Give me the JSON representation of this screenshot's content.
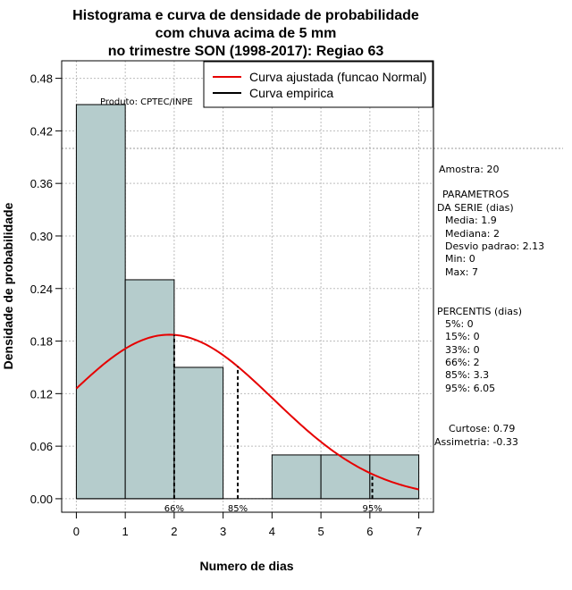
{
  "chart_data": {
    "type": "bar",
    "title_lines": [
      "Histograma e curva de densidade de probabilidade",
      "com chuva acima de 5 mm",
      "no trimestre SON (1998-2017): Regiao 63"
    ],
    "xlabel": "Numero de dias",
    "ylabel": "Densidade de probabilidade",
    "xlim": [
      -0.3,
      7.3
    ],
    "ylim": [
      -0.0154,
      0.5
    ],
    "x_ticks": [
      "0",
      "1",
      "2",
      "3",
      "4",
      "5",
      "6",
      "7"
    ],
    "y_ticks": [
      "0.00",
      "0.06",
      "0.12",
      "0.18",
      "0.24",
      "0.30",
      "0.36",
      "0.42",
      "0.48"
    ],
    "grid": true,
    "legend_position": "top-right",
    "bins": [
      {
        "start": 0,
        "end": 1,
        "density": 0.45
      },
      {
        "start": 1,
        "end": 2,
        "density": 0.25
      },
      {
        "start": 2,
        "end": 3,
        "density": 0.15
      },
      {
        "start": 3,
        "end": 4,
        "density": 0.0
      },
      {
        "start": 4,
        "end": 5,
        "density": 0.05
      },
      {
        "start": 5,
        "end": 6,
        "density": 0.05
      },
      {
        "start": 6,
        "end": 7,
        "density": 0.05
      }
    ],
    "bar_color": "#b5cccc",
    "series": [
      {
        "name": "Curva ajustada (funcao Normal)",
        "color": "#e60000",
        "kind": "normal",
        "mean": 1.9,
        "sd": 2.13
      },
      {
        "name": "Curva empirica",
        "color": "#000000",
        "kind": "empirical"
      }
    ],
    "percentile_markers": [
      {
        "x": 2,
        "label": "66%"
      },
      {
        "x": 3.3,
        "label": "85%"
      },
      {
        "x": 6.05,
        "label": "95%"
      }
    ],
    "source_label": "Produto: CPTEC/INPE",
    "reference_line_y": 0.4,
    "stats": {
      "amostra": "Amostra: 20",
      "parametros_title_1": "PARAMETROS",
      "parametros_title_2": "DA SERIE (dias)",
      "media": "Media: 1.9",
      "mediana": "Mediana: 2",
      "desvio": "Desvio padrao: 2.13",
      "min": "Min: 0",
      "max": "Max: 7",
      "percentis_title": "PERCENTIS (dias)",
      "p5": "5%: 0",
      "p15": "15%: 0",
      "p33": "33%: 0",
      "p66": "66%: 2",
      "p85": "85%: 3.3",
      "p95": "95%: 6.05",
      "curtose": "Curtose: 0.79",
      "assimetria": "Assimetria: -0.33"
    }
  }
}
